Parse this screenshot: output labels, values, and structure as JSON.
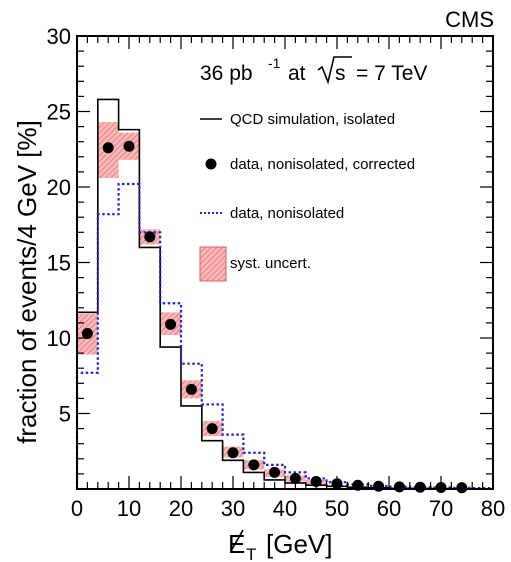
{
  "chart_data": {
    "type": "histogram",
    "experiment_label": "CMS",
    "lumi": {
      "value": "36 pb",
      "exponent": "-1",
      "at": "at",
      "sqrt": "s",
      "energy": "= 7 TeV"
    },
    "xlabel": {
      "symbol": "E",
      "subscript": "T",
      "unit": "[GeV]"
    },
    "ylabel": "fraction of events/4 GeV [%]",
    "xlim": [
      0,
      80
    ],
    "ylim": [
      0,
      30
    ],
    "x_ticks": [
      0,
      10,
      20,
      30,
      40,
      50,
      60,
      70,
      80
    ],
    "y_ticks": [
      5,
      10,
      15,
      20,
      25,
      30
    ],
    "bin_width": 4,
    "bin_edges": [
      0,
      4,
      8,
      12,
      16,
      20,
      24,
      28,
      32,
      36,
      40,
      44,
      48,
      52,
      56,
      60,
      64,
      68,
      72,
      76,
      80
    ],
    "series": [
      {
        "name": "QCD simulation, isolated",
        "style": "solid-step",
        "color": "#000000",
        "values": [
          11.7,
          25.8,
          23.8,
          16.0,
          9.4,
          5.5,
          3.2,
          1.9,
          1.1,
          0.6,
          0.4,
          0.25,
          0.18,
          0.12,
          0.08,
          0.05,
          0.04,
          0.03,
          0.02,
          0.01
        ]
      },
      {
        "name": "data, nonisolated, corrected",
        "style": "markers",
        "color": "#000000",
        "x": [
          2,
          6,
          10,
          14,
          18,
          22,
          26,
          30,
          34,
          38,
          42,
          46,
          50,
          54,
          58,
          62,
          66,
          70,
          74
        ],
        "values": [
          10.3,
          22.6,
          22.7,
          16.7,
          10.9,
          6.6,
          4.0,
          2.4,
          1.6,
          1.1,
          0.7,
          0.5,
          0.35,
          0.25,
          0.18,
          0.14,
          0.12,
          0.1,
          0.08
        ]
      },
      {
        "name": "data, nonisolated",
        "style": "dotted-step",
        "color": "#1f22d8",
        "values": [
          7.7,
          18.2,
          20.2,
          17.0,
          12.3,
          8.3,
          5.6,
          3.6,
          2.4,
          1.6,
          1.1,
          0.7,
          0.45,
          0.3,
          0.2,
          0.15,
          0.12,
          0.1,
          0.08,
          0.06
        ]
      }
    ],
    "systematic_band": {
      "name": "syst. uncert.",
      "color": "#f4a6a6",
      "hatch_color": "#e03030",
      "bins_x": [
        0,
        4,
        8,
        12,
        16,
        20,
        24,
        28,
        32,
        36,
        40,
        44
      ],
      "low": [
        8.9,
        20.6,
        21.8,
        16.2,
        10.2,
        6.0,
        3.5,
        2.1,
        1.3,
        0.8,
        0.5,
        0.3
      ],
      "high": [
        11.6,
        24.3,
        23.6,
        17.2,
        11.7,
        7.2,
        4.5,
        2.8,
        1.9,
        1.3,
        0.9,
        0.6
      ]
    },
    "legend": [
      "QCD simulation, isolated",
      "data, nonisolated, corrected",
      "data, nonisolated",
      "syst. uncert."
    ],
    "grid": false,
    "legend_position": "top-right"
  }
}
